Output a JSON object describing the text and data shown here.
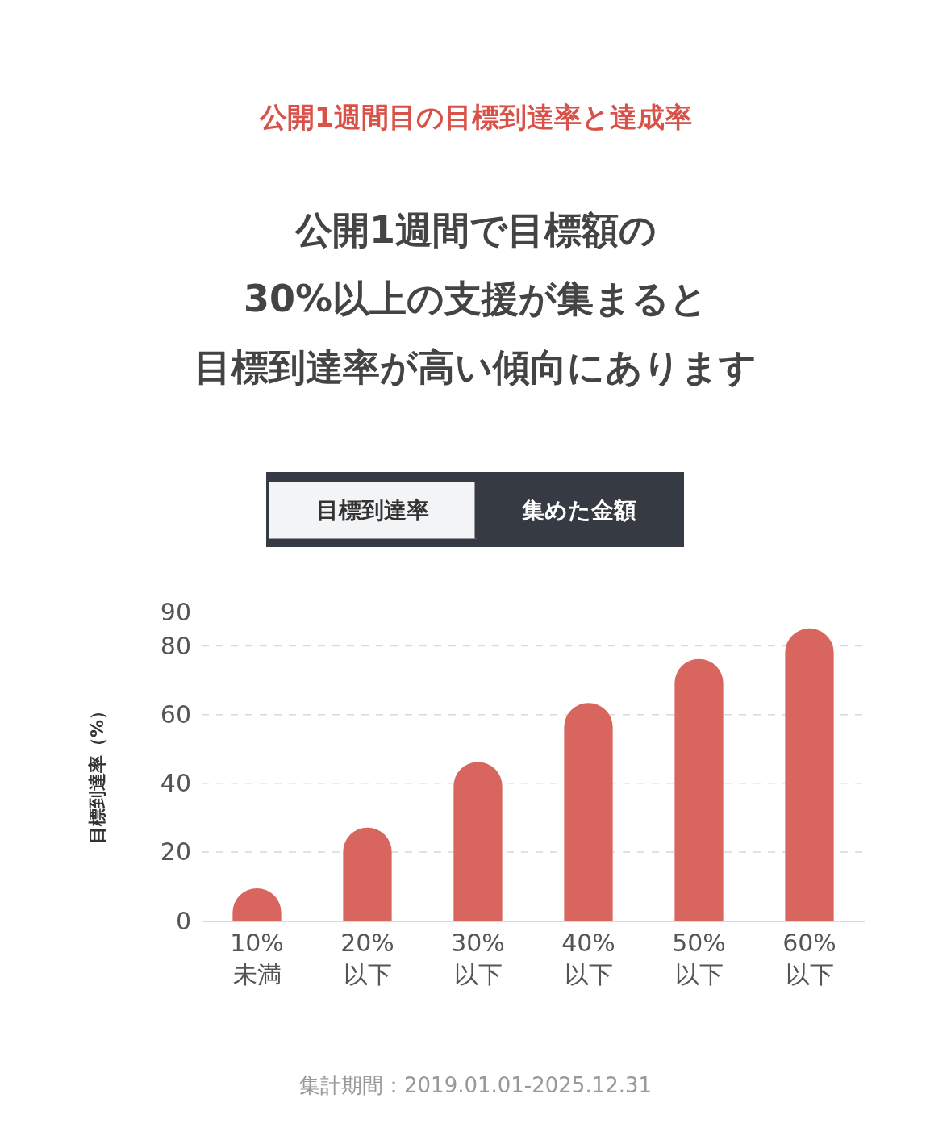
{
  "chart_data": {
    "type": "bar",
    "title": "公開1週間目の目標到達率と達成率",
    "ylabel": "目標到達率（%）",
    "categories": [
      "10%\n未満",
      "20%\n以下",
      "30%\n以下",
      "40%\n以下",
      "50%\n以下",
      "60%\n以下"
    ],
    "values": [
      9.4,
      27.1,
      46.2,
      63.4,
      76.2,
      85.1
    ],
    "color": "#d9655f",
    "ylim": [
      0,
      90
    ],
    "yticks": [
      0,
      20,
      40,
      60,
      80,
      90
    ],
    "grid": "y",
    "annotations": [
      "公開1週間で目標額の",
      "30%以上の支援が集まると",
      "目標到達率が高い傾向にあります",
      "目標到達率",
      "集めた金額",
      "集計期間：2019.01.01-2025.12.31"
    ]
  }
}
